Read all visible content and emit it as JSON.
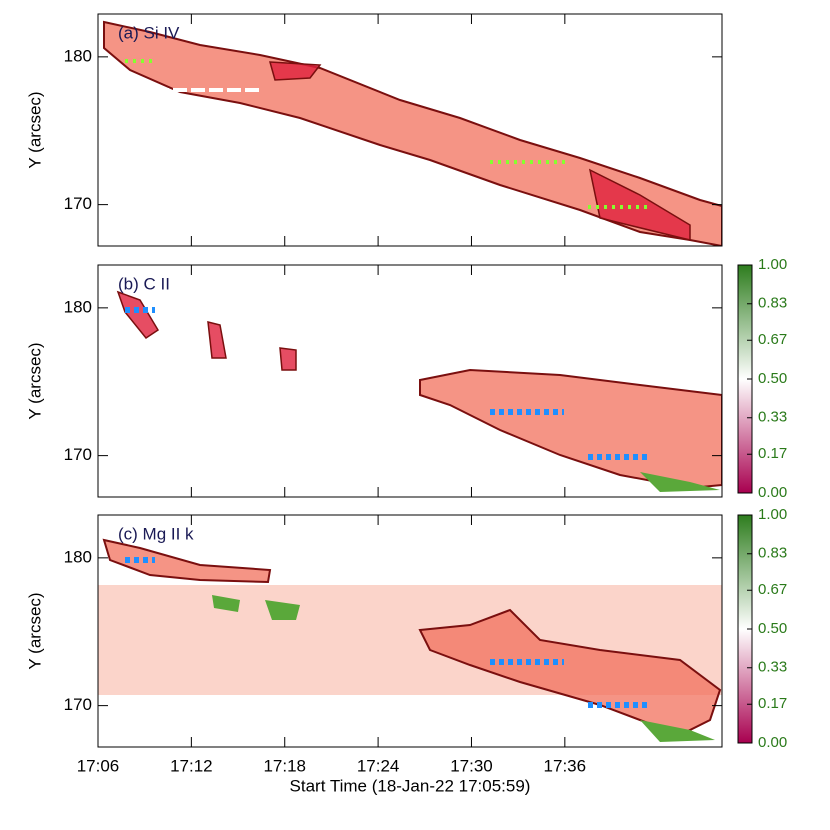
{
  "chart_data": [
    {
      "type": "heatmap",
      "title": "(a) Si IV",
      "ylabel": "Y (arcsec)",
      "xlim": [
        6,
        46.1
      ],
      "ylim": [
        167.2,
        182.9
      ],
      "yticks": [
        170,
        180
      ]
    },
    {
      "type": "heatmap",
      "title": "(b) C II",
      "ylabel": "Y (arcsec)",
      "xlim": [
        6,
        46.1
      ],
      "ylim": [
        167.2,
        182.9
      ],
      "yticks": [
        170,
        180
      ],
      "colorbar": {
        "lim": [
          0,
          1
        ],
        "colors": [
          "#a8004f",
          "#ffffff",
          "#2e7d1e"
        ],
        "ticks": [
          {
            "value": 0,
            "label": "0.00"
          },
          0.17,
          0.33,
          {
            "value": 0.5,
            "label": "0.50"
          },
          0.67,
          0.83,
          {
            "value": 1,
            "label": "1.00"
          }
        ]
      }
    },
    {
      "type": "heatmap",
      "title": "(c) Mg II k",
      "ylabel": "Y (arcsec)",
      "xlabel": "Start Time (18-Jan-22 17:05:59)",
      "xlim": [
        6,
        46.1
      ],
      "ylim": [
        167.2,
        182.9
      ],
      "yticks": [
        170,
        180
      ],
      "xticks": [
        {
          "value": 6,
          "label": "17:06"
        },
        {
          "value": 12,
          "label": "17:12"
        },
        {
          "value": 18,
          "label": "17:18"
        },
        {
          "value": 24,
          "label": "17:24"
        },
        {
          "value": 30,
          "label": "17:30"
        },
        {
          "value": 36,
          "label": "17:36"
        }
      ],
      "colorbar": {
        "lim": [
          0,
          1
        ],
        "colors": [
          "#a8004f",
          "#ffffff",
          "#2e7d1e"
        ],
        "ticks": [
          {
            "value": 0,
            "label": "0.00"
          },
          0.17,
          0.33,
          {
            "value": 0.5,
            "label": "0.50"
          },
          0.67,
          0.83,
          {
            "value": 1,
            "label": "1.00"
          }
        ]
      }
    }
  ]
}
